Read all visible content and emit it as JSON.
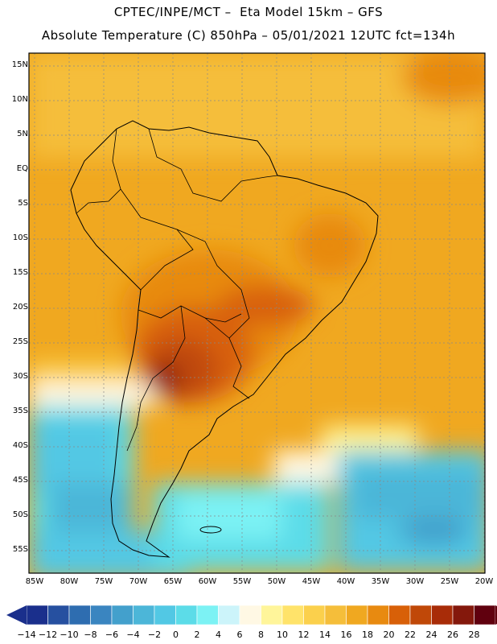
{
  "title_line1": "CPTEC/INPE/MCT –  Eta Model 15km – GFS",
  "title_line2": "Absolute Temperature (C) 850hPa – 05/01/2021 12UTC fct=134h",
  "lat_labels": [
    "15N",
    "10N",
    "5N",
    "EQ",
    "5S",
    "10S",
    "15S",
    "20S",
    "25S",
    "30S",
    "35S",
    "40S",
    "45S",
    "50S",
    "55S"
  ],
  "lat_values": [
    15,
    10,
    5,
    0,
    -5,
    -10,
    -15,
    -20,
    -25,
    -30,
    -35,
    -40,
    -45,
    -50,
    -55
  ],
  "lon_labels": [
    "85W",
    "80W",
    "75W",
    "70W",
    "65W",
    "60W",
    "55W",
    "50W",
    "45W",
    "40W",
    "35W",
    "30W",
    "25W",
    "20W"
  ],
  "lon_values": [
    -85,
    -80,
    -75,
    -70,
    -65,
    -60,
    -55,
    -50,
    -45,
    -40,
    -35,
    -30,
    -25,
    -20
  ],
  "colorbar": {
    "labels": [
      "−14",
      "−12",
      "−10",
      "−8",
      "−6",
      "−4",
      "−2",
      "0",
      "2",
      "4",
      "6",
      "8",
      "10",
      "12",
      "14",
      "16",
      "18",
      "20",
      "22",
      "24",
      "26",
      "28"
    ],
    "colors": [
      "#1a2f8c",
      "#2650a0",
      "#2e6db0",
      "#3a85c0",
      "#43a0cc",
      "#4cb6d8",
      "#52c8e4",
      "#5cdce8",
      "#7cf2f4",
      "#ccf4fa",
      "#fff8e4",
      "#fff59a",
      "#ffe36a",
      "#fbd04c",
      "#f5be3a",
      "#f0a820",
      "#e88a10",
      "#d86008",
      "#c04808",
      "#a82c08",
      "#84180c",
      "#60000e"
    ]
  },
  "colors": {
    "border": "#000000",
    "grid": "#888888"
  },
  "icons": {
    "left_arrow": "triangle-left-icon",
    "right_arrow": "triangle-right-icon"
  }
}
